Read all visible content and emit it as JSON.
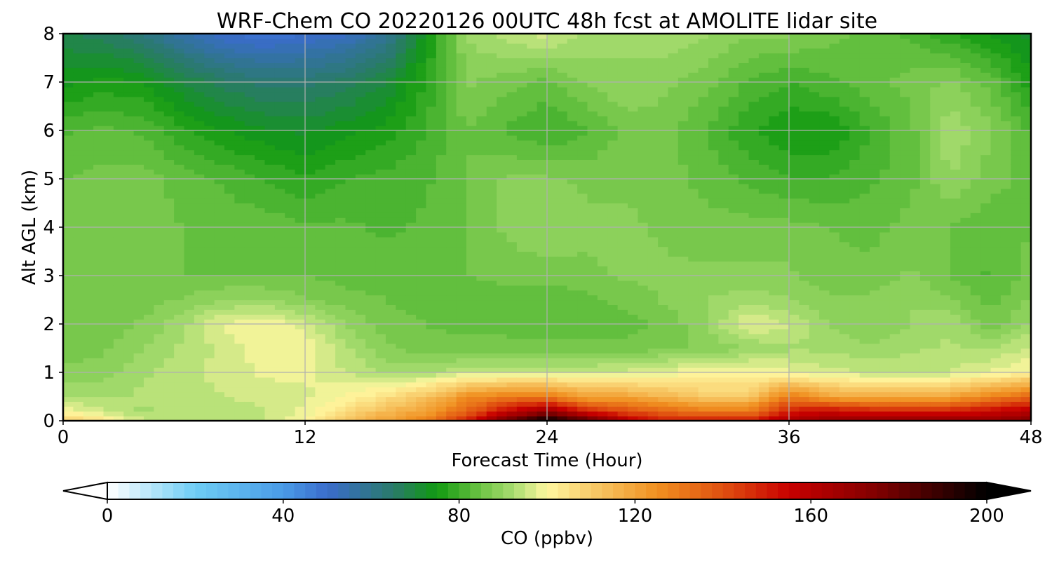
{
  "chart_data": {
    "type": "heatmap",
    "title": "WRF-Chem CO  20220126 00UTC 48h fcst at AMOLITE lidar site",
    "xlabel": "Forecast Time (Hour)",
    "ylabel": "Alt AGL (km)",
    "xlim": [
      0,
      48
    ],
    "ylim": [
      0,
      8
    ],
    "x_ticks": [
      0,
      12,
      24,
      36,
      48
    ],
    "y_ticks": [
      0,
      1,
      2,
      3,
      4,
      5,
      6,
      7,
      8
    ],
    "grid": true,
    "colorbar": {
      "label": "CO  (ppbv)",
      "range": [
        0,
        200
      ],
      "ticks": [
        0,
        40,
        80,
        120,
        160,
        200
      ],
      "extend": "both",
      "orientation": "horizontal",
      "colors": [
        {
          "v": 0,
          "c": "#ffffff"
        },
        {
          "v": 20,
          "c": "#6ecdf5"
        },
        {
          "v": 40,
          "c": "#4a9be6"
        },
        {
          "v": 50,
          "c": "#3a6ccc"
        },
        {
          "v": 65,
          "c": "#2a7a6a"
        },
        {
          "v": 75,
          "c": "#119a11"
        },
        {
          "v": 85,
          "c": "#6ec444"
        },
        {
          "v": 92,
          "c": "#a6dc6e"
        },
        {
          "v": 100,
          "c": "#fff7a0"
        },
        {
          "v": 110,
          "c": "#f8cc6a"
        },
        {
          "v": 125,
          "c": "#f09020"
        },
        {
          "v": 140,
          "c": "#e05010"
        },
        {
          "v": 155,
          "c": "#c80000"
        },
        {
          "v": 175,
          "c": "#800000"
        },
        {
          "v": 200,
          "c": "#000000"
        }
      ]
    },
    "x": [
      0,
      2,
      4,
      6,
      8,
      10,
      12,
      14,
      16,
      18,
      20,
      22,
      24,
      26,
      28,
      30,
      32,
      34,
      36,
      38,
      40,
      42,
      44,
      46,
      48
    ],
    "y": [
      0,
      0.2,
      0.5,
      1,
      1.5,
      2,
      2.5,
      3,
      4,
      5,
      6,
      7,
      8
    ],
    "values": [
      [
        110,
        105,
        95,
        95,
        95,
        95,
        100,
        110,
        120,
        130,
        150,
        180,
        200,
        185,
        160,
        150,
        150,
        150,
        165,
        170,
        170,
        170,
        170,
        170,
        175
      ],
      [
        100,
        95,
        92,
        93,
        93,
        95,
        98,
        105,
        115,
        120,
        135,
        155,
        170,
        150,
        140,
        135,
        130,
        130,
        150,
        155,
        150,
        150,
        150,
        155,
        160
      ],
      [
        92,
        92,
        93,
        94,
        95,
        96,
        97,
        100,
        105,
        112,
        125,
        130,
        130,
        120,
        120,
        115,
        110,
        110,
        130,
        120,
        118,
        118,
        120,
        128,
        135
      ],
      [
        88,
        89,
        92,
        94,
        96,
        98,
        98,
        95,
        92,
        92,
        95,
        95,
        95,
        95,
        96,
        98,
        100,
        100,
        98,
        96,
        95,
        95,
        95,
        98,
        100
      ],
      [
        86,
        87,
        90,
        93,
        96,
        99,
        100,
        93,
        88,
        86,
        86,
        86,
        86,
        86,
        86,
        87,
        88,
        90,
        92,
        92,
        90,
        92,
        93,
        92,
        96
      ],
      [
        85,
        86,
        88,
        92,
        98,
        100,
        96,
        90,
        86,
        85,
        84,
        84,
        83,
        83,
        84,
        86,
        90,
        98,
        95,
        90,
        88,
        90,
        92,
        86,
        90
      ],
      [
        86,
        86,
        86,
        88,
        90,
        90,
        88,
        86,
        85,
        84,
        83,
        83,
        83,
        84,
        86,
        88,
        90,
        92,
        90,
        88,
        88,
        90,
        88,
        84,
        88
      ],
      [
        86,
        86,
        85,
        85,
        85,
        85,
        85,
        84,
        84,
        84,
        85,
        86,
        86,
        87,
        88,
        88,
        88,
        88,
        88,
        86,
        86,
        88,
        85,
        82,
        86
      ],
      [
        87,
        86,
        86,
        85,
        84,
        84,
        83,
        83,
        82,
        83,
        85,
        88,
        90,
        88,
        88,
        87,
        86,
        86,
        86,
        85,
        84,
        86,
        85,
        83,
        85
      ],
      [
        85,
        86,
        86,
        84,
        82,
        80,
        78,
        80,
        81,
        82,
        85,
        88,
        88,
        87,
        87,
        86,
        84,
        82,
        80,
        80,
        82,
        84,
        90,
        86,
        84
      ],
      [
        82,
        83,
        82,
        78,
        75,
        73,
        72,
        74,
        76,
        80,
        85,
        82,
        80,
        82,
        86,
        86,
        82,
        78,
        75,
        75,
        80,
        84,
        92,
        88,
        82
      ],
      [
        74,
        76,
        75,
        70,
        66,
        64,
        64,
        66,
        70,
        78,
        88,
        86,
        84,
        88,
        90,
        88,
        86,
        82,
        80,
        82,
        84,
        86,
        88,
        84,
        76
      ],
      [
        68,
        66,
        62,
        55,
        50,
        48,
        50,
        52,
        58,
        74,
        90,
        94,
        96,
        92,
        90,
        92,
        90,
        88,
        88,
        86,
        84,
        82,
        78,
        74,
        72
      ]
    ]
  }
}
